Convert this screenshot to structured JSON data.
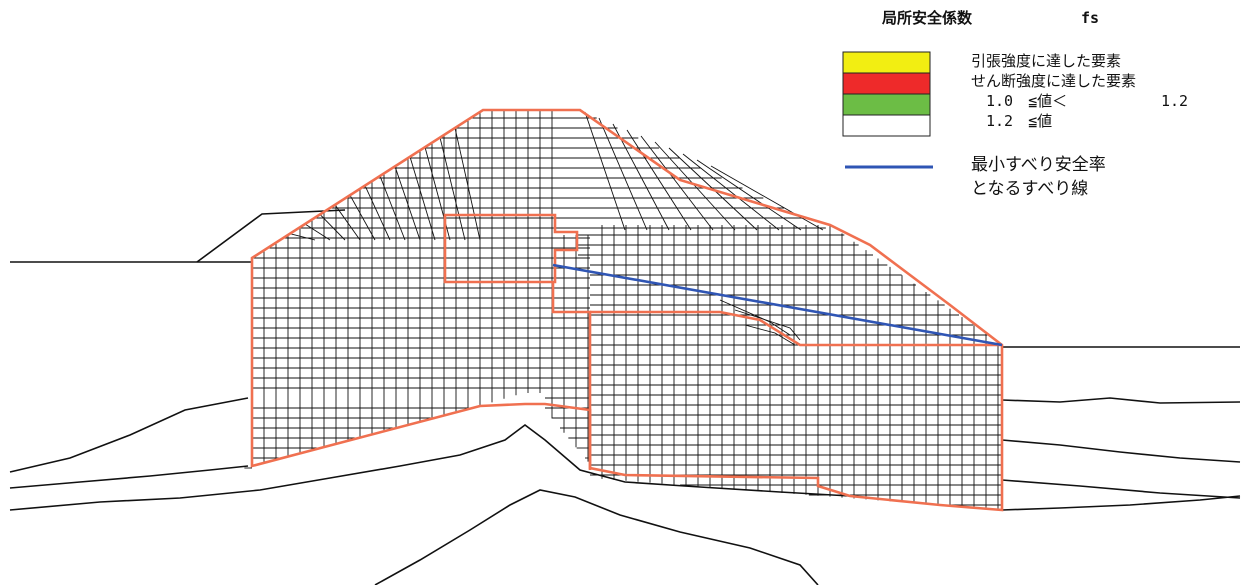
{
  "legend": {
    "title": "局所安全係数",
    "symbol": "fs",
    "items": [
      {
        "color": "#f2ee12",
        "label": "引張強度に達した要素"
      },
      {
        "color": "#ee2a2a",
        "label": "せん断強度に達した要素"
      },
      {
        "color": "#6cbd45",
        "label": "1.0　≦値＜",
        "upper": "1.2"
      },
      {
        "color": "#ffffff",
        "label": "1.2　≦値"
      }
    ],
    "line_label_1": "最小すべり安全率",
    "line_label_2": "となるすべり線"
  },
  "colors": {
    "mesh": "#111111",
    "boundary": "#f07050",
    "slip_line": "#2f55b4",
    "ground": "#111111"
  }
}
